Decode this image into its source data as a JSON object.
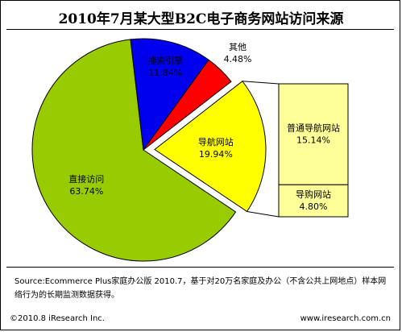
{
  "chart_data": {
    "type": "pie",
    "title": "2010年7月某大型B2C电子商务网站访问来源",
    "slices": [
      {
        "label": "直接访问",
        "value": 63.74,
        "value_label": "63.74%",
        "color": "#99cc00"
      },
      {
        "label": "搜索引擎",
        "value": 11.84,
        "value_label": "11.84%",
        "color": "#0000ee"
      },
      {
        "label": "其他",
        "value": 4.48,
        "value_label": "4.48%",
        "color": "#ff0000"
      },
      {
        "label": "导航网站",
        "value": 19.94,
        "value_label": "19.94%",
        "color": "#ffff00",
        "exploded": true
      }
    ],
    "breakdown": {
      "of": "导航网站",
      "items": [
        {
          "label": "普通导航网站",
          "value": 15.14,
          "value_label": "15.14%",
          "color": "#ffff99"
        },
        {
          "label": "导购网站",
          "value": 4.8,
          "value_label": "4.80%",
          "color": "#ffff99"
        }
      ]
    }
  },
  "source": "Source:Ecommerce Plus家庭办公版 2010.7，基于对20万名家庭及办公（不含公共上网地点）样本网络行为的长期监测数据获得。",
  "footer": {
    "copyright": "©2010.8 iResearch Inc.",
    "website": "www.iresearch.com.cn"
  }
}
